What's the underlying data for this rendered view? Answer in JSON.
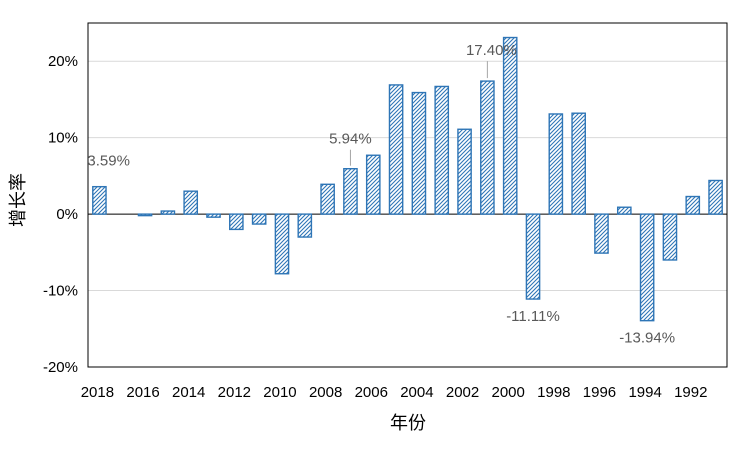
{
  "chart_data": {
    "type": "bar",
    "title": "",
    "xlabel": "年份",
    "ylabel": "增长率",
    "ylim": [
      -20,
      25
    ],
    "yticks": [
      -20,
      -10,
      0,
      10,
      20
    ],
    "ytick_labels": [
      "-20%",
      "-10%",
      "0%",
      "10%",
      "20%"
    ],
    "grid": true,
    "x_order": "descending",
    "categories": [
      2018,
      2017,
      2016,
      2015,
      2014,
      2013,
      2012,
      2011,
      2010,
      2009,
      2008,
      2007,
      2006,
      2005,
      2004,
      2003,
      2002,
      2001,
      2000,
      1999,
      1998,
      1997,
      1996,
      1995,
      1994,
      1993,
      1992,
      1991
    ],
    "xtick_labels": [
      "2018",
      "2016",
      "2014",
      "2012",
      "2010",
      "2008",
      "2006",
      "2004",
      "2002",
      "2000",
      "1998",
      "1996",
      "1994",
      "1992"
    ],
    "values": [
      3.59,
      0.0,
      -0.2,
      0.4,
      3.0,
      -0.4,
      -2.0,
      -1.3,
      -7.8,
      -3.0,
      3.9,
      5.94,
      7.7,
      16.9,
      15.9,
      16.7,
      11.1,
      17.4,
      23.1,
      -11.11,
      13.1,
      13.2,
      -5.1,
      0.9,
      -13.94,
      -6.0,
      2.3,
      4.4
    ],
    "bar_color": "#2E75B6",
    "bar_pattern": "diagonal-hatch",
    "annotations": [
      {
        "year": 2018,
        "text": "3.59%"
      },
      {
        "year": 2007,
        "text": "5.94%"
      },
      {
        "year": 2001,
        "text": "17.40%"
      },
      {
        "year": 1999,
        "text": "-11.11%"
      },
      {
        "year": 1994,
        "text": "-13.94%"
      }
    ]
  }
}
